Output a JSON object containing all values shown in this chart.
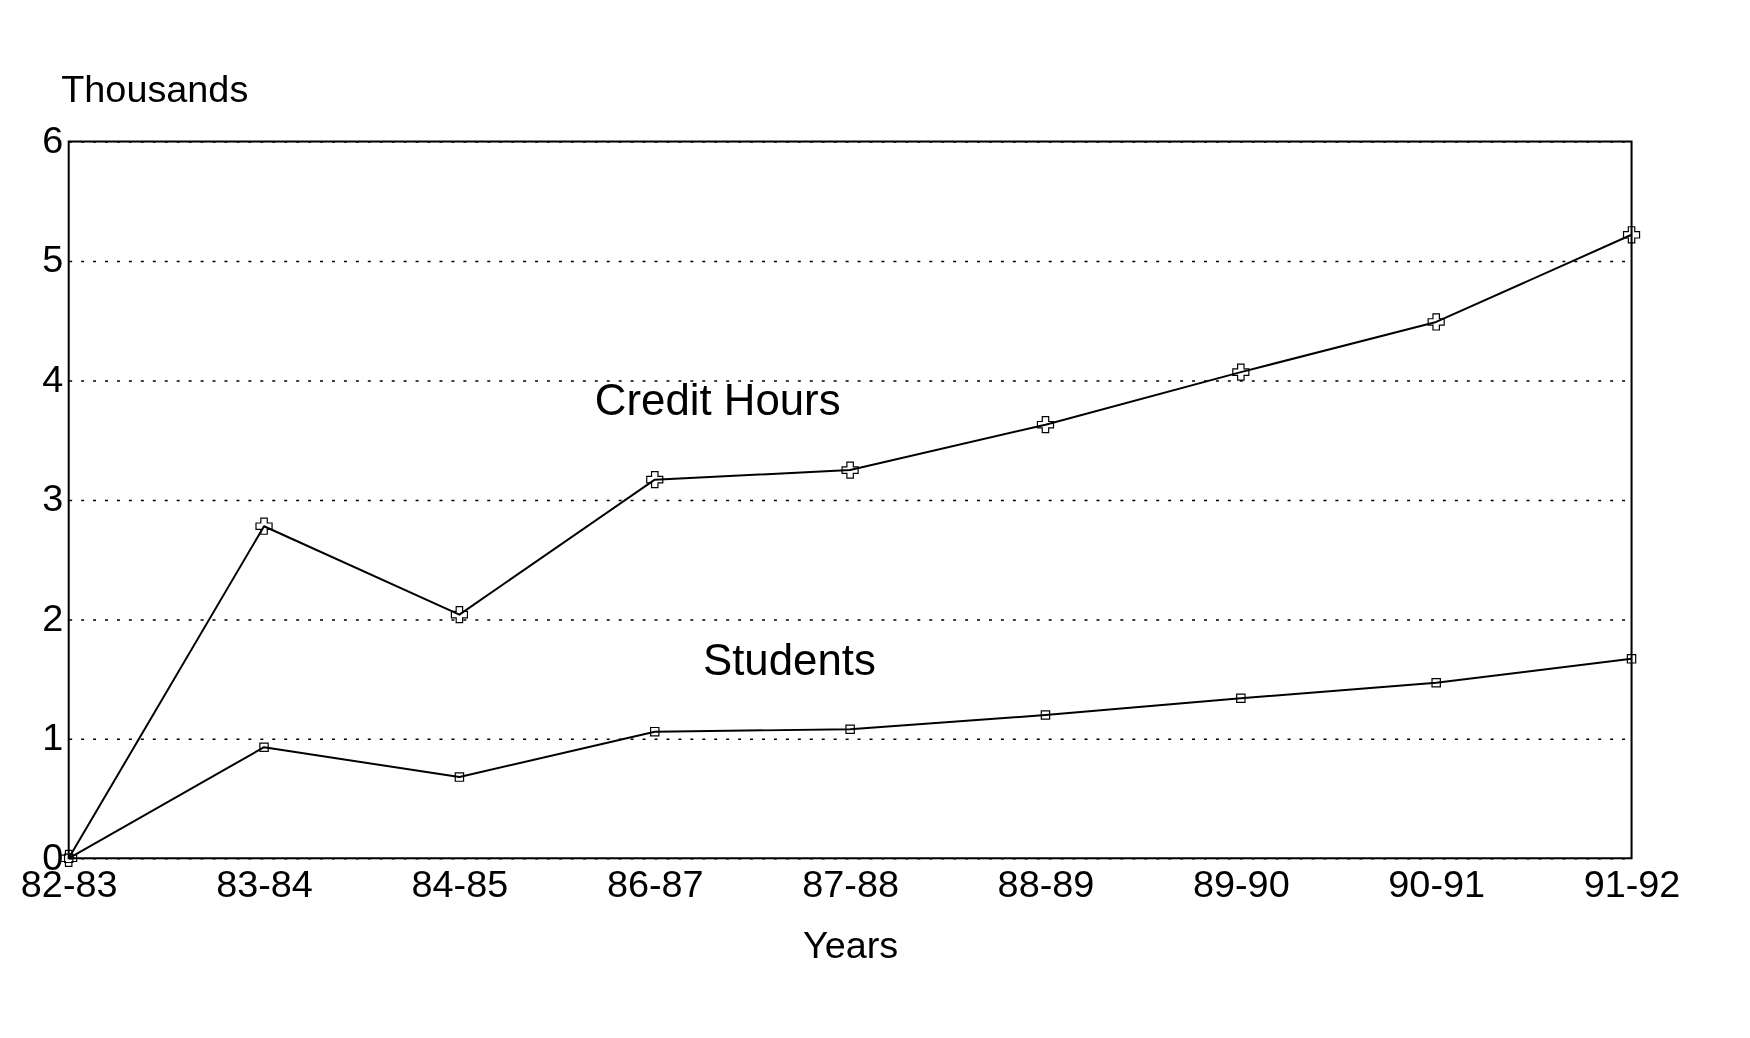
{
  "chart_data": {
    "type": "line",
    "xlabel": "Years",
    "ylabel": "Thousands",
    "categories": [
      "82-83",
      "83-84",
      "84-85",
      "86-87",
      "87-88",
      "88-89",
      "89-90",
      "90-91",
      "91-92"
    ],
    "series": [
      {
        "name": "Credit Hours",
        "color": "#000000",
        "marker": "cross",
        "values": [
          0,
          2.78,
          2.04,
          3.17,
          3.25,
          3.63,
          4.07,
          4.49,
          5.22
        ]
      },
      {
        "name": "Students",
        "color": "#000000",
        "marker": "square",
        "values": [
          0,
          0.93,
          0.68,
          1.06,
          1.08,
          1.2,
          1.34,
          1.47,
          1.67
        ]
      }
    ],
    "ylim": [
      0,
      6
    ],
    "yticks": [
      0,
      1,
      2,
      3,
      4,
      5,
      6
    ],
    "grid": "y",
    "line_style": "solid"
  }
}
